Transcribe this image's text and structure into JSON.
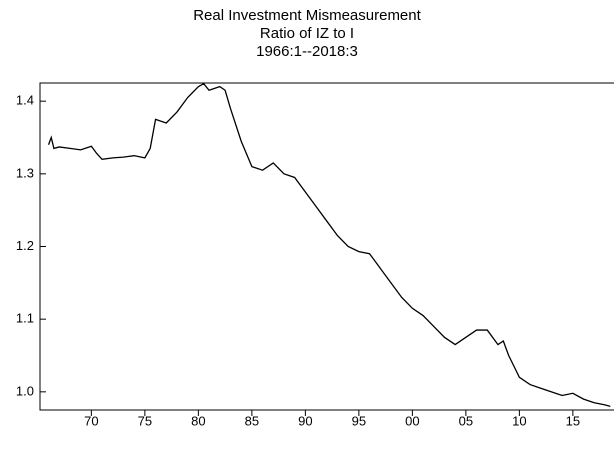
{
  "chart_data": {
    "type": "line",
    "title": "Real Investment Mismeasurement",
    "subtitle": "Ratio of IZ to I",
    "period": "1966:1--2018:3",
    "x": [
      1966,
      1966.25,
      1966.5,
      1967,
      1968,
      1969,
      1970,
      1970.5,
      1971,
      1972,
      1973,
      1974,
      1975,
      1975.5,
      1976,
      1977,
      1978,
      1979,
      1980,
      1980.5,
      1981,
      1982,
      1982.5,
      1983,
      1984,
      1985,
      1986,
      1987,
      1988,
      1989,
      1990,
      1991,
      1992,
      1993,
      1994,
      1995,
      1996,
      1997,
      1998,
      1999,
      2000,
      2001,
      2002,
      2003,
      2004,
      2005,
      2006,
      2007,
      2008,
      2008.5,
      2009,
      2009.5,
      2010,
      2011,
      2012,
      2013,
      2014,
      2015,
      2016,
      2017,
      2018,
      2018.5
    ],
    "series": [
      {
        "name": "IZ/I",
        "color": "#000000",
        "values": [
          1.34,
          1.35,
          1.335,
          1.337,
          1.335,
          1.333,
          1.338,
          1.328,
          1.32,
          1.322,
          1.323,
          1.325,
          1.322,
          1.335,
          1.375,
          1.37,
          1.385,
          1.405,
          1.42,
          1.424,
          1.415,
          1.42,
          1.415,
          1.39,
          1.345,
          1.31,
          1.305,
          1.315,
          1.3,
          1.295,
          1.275,
          1.255,
          1.235,
          1.215,
          1.2,
          1.193,
          1.19,
          1.17,
          1.15,
          1.13,
          1.115,
          1.105,
          1.09,
          1.075,
          1.065,
          1.075,
          1.085,
          1.085,
          1.065,
          1.07,
          1.05,
          1.035,
          1.02,
          1.01,
          1.005,
          1.0,
          0.995,
          0.998,
          0.99,
          0.985,
          0.982,
          0.98
        ]
      }
    ],
    "xlim": [
      1965.2,
      2018.75
    ],
    "ylim": [
      0.975,
      1.425
    ],
    "xticks": [
      {
        "value": 1970,
        "label": "70"
      },
      {
        "value": 1975,
        "label": "75"
      },
      {
        "value": 1980,
        "label": "80"
      },
      {
        "value": 1985,
        "label": "85"
      },
      {
        "value": 1990,
        "label": "90"
      },
      {
        "value": 1995,
        "label": "95"
      },
      {
        "value": 2000,
        "label": "00"
      },
      {
        "value": 2005,
        "label": "05"
      },
      {
        "value": 2010,
        "label": "10"
      },
      {
        "value": 2015,
        "label": "15"
      }
    ],
    "yticks": [
      {
        "value": 1.0,
        "label": "1.0"
      },
      {
        "value": 1.1,
        "label": "1.1"
      },
      {
        "value": 1.2,
        "label": "1.2"
      },
      {
        "value": 1.3,
        "label": "1.3"
      },
      {
        "value": 1.4,
        "label": "1.4"
      }
    ]
  }
}
